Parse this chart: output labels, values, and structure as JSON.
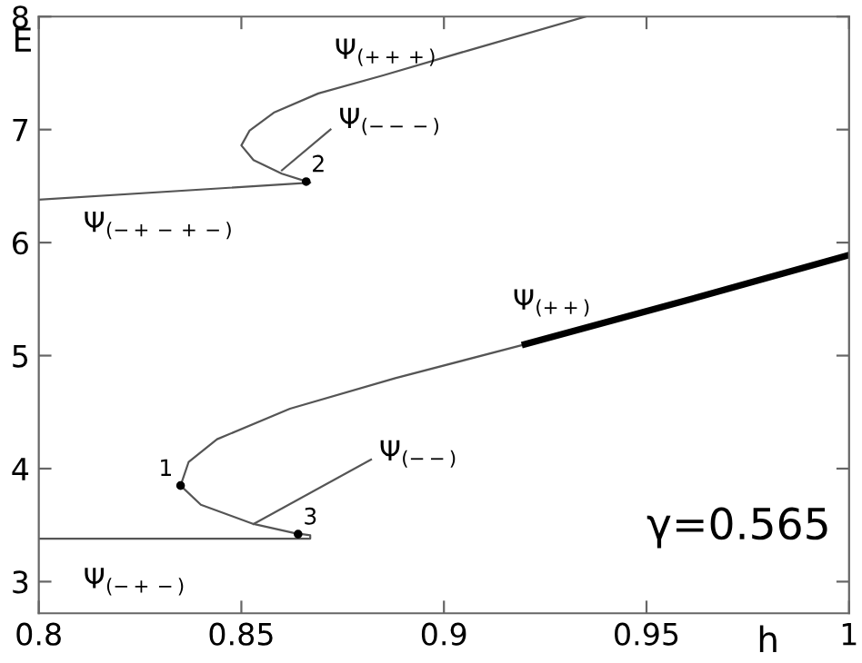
{
  "chart_data": {
    "type": "line",
    "xlabel": "h",
    "ylabel": "E",
    "xlim": [
      0.8,
      1
    ],
    "ylim": [
      2.72,
      8
    ],
    "xticks": [
      0.8,
      0.85,
      0.9,
      0.95,
      {
        "value": 1,
        "label": "1"
      }
    ],
    "yticks": [
      3,
      4,
      5,
      6,
      7,
      8
    ],
    "grid": false,
    "legend": false,
    "marker": "none",
    "line_style": "solid",
    "series": [
      {
        "color": "#555555",
        "x": [
          0.8,
          0.867,
          0.86,
          0.853,
          0.85,
          0.852,
          0.858,
          0.869,
          0.885,
          0.906,
          0.935
        ],
        "values": [
          6.38,
          6.53,
          6.61,
          6.73,
          6.86,
          6.99,
          7.15,
          7.32,
          7.48,
          7.7,
          8.0
        ]
      },
      {
        "color": "#555555",
        "x": [
          0.8,
          0.867,
          0.867,
          0.863,
          0.853,
          0.84,
          0.835,
          0.837,
          0.844,
          0.862,
          0.888,
          0.92
        ],
        "values": [
          3.38,
          3.38,
          3.41,
          3.43,
          3.51,
          3.68,
          3.85,
          4.06,
          4.26,
          4.53,
          4.8,
          5.1
        ]
      },
      {
        "color": "#000000",
        "x": [
          0.92,
          0.959,
          1.0
        ],
        "values": [
          5.1,
          5.48,
          5.89
        ]
      },
      {
        "color": "#555555",
        "x": [
          0.86,
          0.872
        ],
        "values": [
          6.64,
          7.0
        ]
      },
      {
        "color": "#555555",
        "x": [
          0.853,
          0.882
        ],
        "values": [
          3.51,
          4.08
        ]
      },
      {
        "type": "scatter",
        "color": "#000000",
        "x": [
          0.835,
          0.866,
          0.864
        ],
        "values": [
          3.85,
          6.54,
          3.42
        ]
      }
    ],
    "annotations": [
      "Ψ$_{(+++)}$",
      "Ψ$_{(−−−)}$",
      "Ψ$_{(−+−+−)}$",
      "Ψ$_{(++)}$",
      "Ψ$_{(−−)}$",
      "Ψ$_{(−+−)}$",
      {
        "text": "1",
        "x": 0.835,
        "y": 3.85
      },
      {
        "text": "2",
        "x": 0.866,
        "y": 6.54
      },
      {
        "text": "3",
        "x": 0.864,
        "y": 3.42
      },
      "γ=0.565"
    ]
  }
}
